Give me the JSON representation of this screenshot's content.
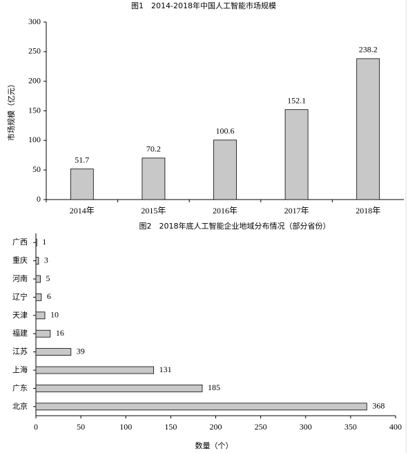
{
  "chart_data": [
    {
      "type": "bar",
      "title": "图1　2014-2018年中国人工智能市场规模",
      "y_label": "市场规模（亿元）",
      "categories": [
        "2014年",
        "2015年",
        "2016年",
        "2017年",
        "2018年"
      ],
      "values": [
        51.7,
        70.2,
        100.6,
        152.1,
        238.2
      ],
      "color": "#c8c8c8",
      "ylim": [
        0,
        300
      ],
      "yticks": [
        0,
        50,
        100,
        150,
        200,
        250,
        300
      ],
      "grid": false
    },
    {
      "type": "barh",
      "title": "图2　2018年底人工智能企业地域分布情况（部分省份）",
      "x_label": "数量（个）",
      "categories": [
        "广西",
        "重庆",
        "河南",
        "辽宁",
        "天津",
        "福建",
        "江苏",
        "上海",
        "广东",
        "北京"
      ],
      "values": [
        1,
        3,
        5,
        6,
        10,
        16,
        39,
        131,
        185,
        368
      ],
      "color": "#c8c8c8",
      "xlim": [
        0,
        400
      ],
      "xticks": [
        0,
        50,
        100,
        150,
        200,
        250,
        300,
        350,
        400
      ],
      "grid": false
    }
  ]
}
